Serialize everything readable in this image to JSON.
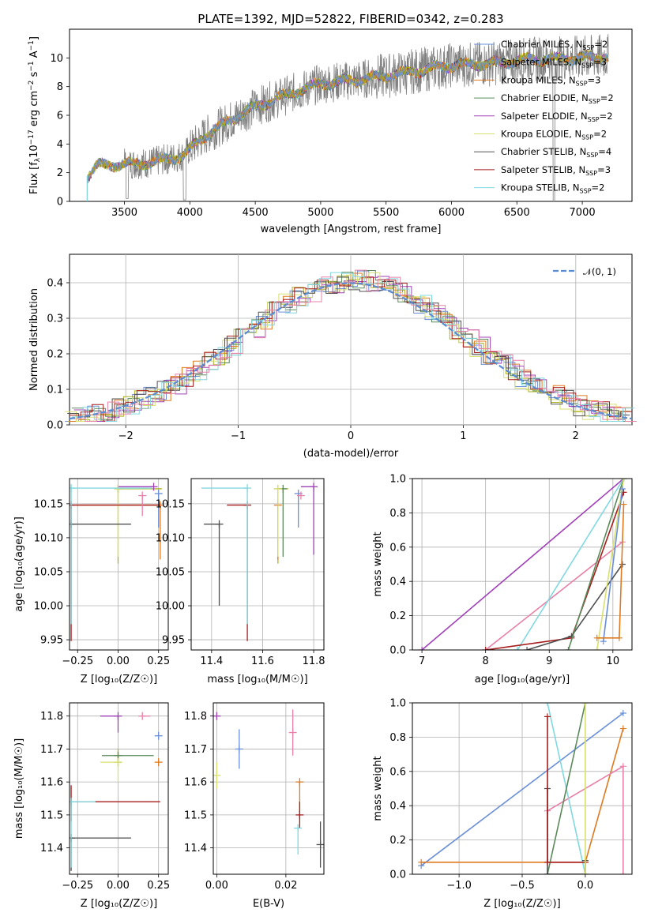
{
  "title": "PLATE=1392, MJD=52822, FIBERID=0342, z=0.283",
  "colors": {
    "chabrier_miles": "#6a8fd8",
    "salpeter_miles": "#aab020",
    "kroupa_miles": "#e07a20",
    "chabrier_elodie": "#5a8a5a",
    "salpeter_elodie": "#a040b8",
    "kroupa_elodie": "#d8e070",
    "chabrier_stelib": "#505050",
    "salpeter_stelib": "#a81c1c",
    "kroupa_stelib": "#80d8e0",
    "data": "#808080",
    "normal": "#5b8bd0",
    "pink": "#e880a8"
  },
  "chart_data": [
    {
      "id": "spectrum",
      "type": "line",
      "xlabel": "wavelength [Angstrom, rest frame]",
      "ylabel": "Flux [f_λ 10^-17 erg cm^-2 s^-1 A^-1]",
      "xlim": [
        3080,
        7380
      ],
      "ylim": [
        0,
        12
      ],
      "xticks": [
        "3500",
        "4000",
        "4500",
        "5000",
        "5500",
        "6000",
        "6500",
        "7000"
      ],
      "yticks": [
        "0",
        "2",
        "4",
        "6",
        "8",
        "10"
      ],
      "legend": [
        {
          "label": "Chabrier MILES, N",
          "sub": "SSP",
          "tail": "=2",
          "color": "chabrier_miles"
        },
        {
          "label": "Salpeter MILES, N",
          "sub": "SSP",
          "tail": "=3",
          "color": "salpeter_miles"
        },
        {
          "label": "Kroupa MILES, N",
          "sub": "SSP",
          "tail": "=3",
          "color": "kroupa_miles"
        },
        {
          "label": "Chabrier ELODIE, N",
          "sub": "SSP",
          "tail": "=2",
          "color": "chabrier_elodie"
        },
        {
          "label": "Salpeter ELODIE, N",
          "sub": "SSP",
          "tail": "=2",
          "color": "salpeter_elodie"
        },
        {
          "label": "Kroupa ELODIE, N",
          "sub": "SSP",
          "tail": "=2",
          "color": "kroupa_elodie"
        },
        {
          "label": "Chabrier STELIB, N",
          "sub": "SSP",
          "tail": "=4",
          "color": "chabrier_stelib"
        },
        {
          "label": "Salpeter STELIB, N",
          "sub": "SSP",
          "tail": "=3",
          "color": "salpeter_stelib"
        },
        {
          "label": "Kroupa STELIB, N",
          "sub": "SSP",
          "tail": "=2",
          "color": "kroupa_stelib"
        }
      ],
      "continuum": [
        [
          3215,
          1.7
        ],
        [
          3300,
          2.5
        ],
        [
          3500,
          2.6
        ],
        [
          3700,
          2.7
        ],
        [
          3950,
          3.2
        ],
        [
          4100,
          4.5
        ],
        [
          4300,
          5.6
        ],
        [
          4500,
          6.6
        ],
        [
          4800,
          7.6
        ],
        [
          5000,
          8.2
        ],
        [
          5300,
          8.5
        ],
        [
          5600,
          8.9
        ],
        [
          5800,
          9.2
        ],
        [
          6000,
          9.5
        ],
        [
          6300,
          9.6
        ],
        [
          6600,
          9.9
        ],
        [
          7000,
          10.0
        ],
        [
          7200,
          10.1
        ]
      ]
    },
    {
      "id": "residuals",
      "type": "step",
      "xlabel": "(data-model)/error",
      "ylabel": "Normed distribution",
      "xlim": [
        -2.5,
        2.5
      ],
      "ylim": [
        0,
        0.48
      ],
      "xticks": [
        -2,
        -1,
        0,
        1,
        2
      ],
      "xtick_labels": [
        "−2",
        "−1",
        "0",
        "1",
        "2"
      ],
      "yticks": [
        0.0,
        0.1,
        0.2,
        0.3,
        0.4
      ],
      "ytick_labels": [
        "0.0",
        "0.1",
        "0.2",
        "0.3",
        "0.4"
      ],
      "legend": "𝒩(0, 1)",
      "hist_bin_width": 0.1
    },
    {
      "id": "age_vs_Z",
      "type": "scatter",
      "xlabel": "Z [log₁₀(Z/Z☉)]",
      "ylabel": "age [log₁₀(age/yr)]",
      "xlim": [
        -0.3,
        0.31
      ],
      "ylim": [
        9.935,
        10.187
      ],
      "xticks": [
        -0.25,
        0.0,
        0.25
      ],
      "xtick_labels": [
        "−0.25",
        "0.00",
        "0.25"
      ],
      "yticks": [
        9.95,
        10.0,
        10.05,
        10.1,
        10.15
      ],
      "ytick_labels": [
        "9.95",
        "10.00",
        "10.05",
        "10.10",
        "10.15"
      ],
      "points": [
        {
          "x": 0.25,
          "y": 10.165,
          "ex": [
            0.0,
            0.0
          ],
          "ey": [
            0.05,
            0.0
          ],
          "c": "chabrier_miles"
        },
        {
          "x": 0.0,
          "y": 10.172,
          "ex": [
            0.0,
            0.27
          ],
          "ey": [
            0.11,
            0.0
          ],
          "c": "salpeter_miles"
        },
        {
          "x": 0.26,
          "y": 10.148,
          "ex": [
            0.52,
            0.0
          ],
          "ey": [
            0.08,
            0.0
          ],
          "c": "kroupa_miles"
        },
        {
          "x": 0.0,
          "y": 10.172,
          "ex": [
            0.0,
            0.2
          ],
          "ey": [
            0.0,
            0.0
          ],
          "c": "chabrier_elodie"
        },
        {
          "x": 0.22,
          "y": 10.175,
          "ex": [
            0.22,
            0.0
          ],
          "ey": [
            0.0,
            0.0
          ],
          "c": "salpeter_elodie"
        },
        {
          "x": 0.0,
          "y": 10.172,
          "ex": [
            0.0,
            0.2
          ],
          "ey": [
            0.1,
            0.0
          ],
          "c": "kroupa_elodie"
        },
        {
          "x": -0.29,
          "y": 10.12,
          "ex": [
            0.0,
            0.37
          ],
          "ey": [
            0.0,
            0.0
          ],
          "c": "chabrier_stelib"
        },
        {
          "x": -0.29,
          "y": 10.148,
          "ex": [
            0.0,
            0.55
          ],
          "ey": [
            0.2,
            0.0
          ],
          "c": "salpeter_stelib"
        },
        {
          "x": -0.29,
          "y": 10.173,
          "ex": [
            0.0,
            0.5
          ],
          "ey": [
            0.2,
            0.0
          ],
          "c": "kroupa_stelib"
        },
        {
          "x": 0.15,
          "y": 10.162,
          "ex": [
            0.0,
            0.0
          ],
          "ey": [
            0.03,
            0.0
          ],
          "c": "pink"
        }
      ]
    },
    {
      "id": "age_vs_mass",
      "type": "scatter",
      "xlabel": "mass [log₁₀(M/M☉)]",
      "xlim": [
        11.32,
        11.84
      ],
      "ylim": [
        9.935,
        10.187
      ],
      "xticks": [
        11.4,
        11.6,
        11.8
      ],
      "xtick_labels": [
        "11.4",
        "11.6",
        "11.8"
      ],
      "yticks": [
        9.95,
        10.0,
        10.05,
        10.1,
        10.15
      ],
      "ytick_labels": [
        "9.95",
        "10.00",
        "10.05",
        "10.10",
        "10.15"
      ],
      "points": [
        {
          "x": 11.74,
          "y": 10.165,
          "ex": [
            0.0,
            0.0
          ],
          "ey": [
            0.05,
            0.0
          ],
          "c": "chabrier_miles"
        },
        {
          "x": 11.66,
          "y": 10.172,
          "ex": [
            0.0,
            0.04
          ],
          "ey": [
            0.11,
            0.0
          ],
          "c": "salpeter_miles"
        },
        {
          "x": 11.66,
          "y": 10.148,
          "ex": [
            0.0,
            0.0
          ],
          "ey": [
            0.08,
            0.0
          ],
          "c": "kroupa_miles"
        },
        {
          "x": 11.68,
          "y": 10.172,
          "ex": [
            0.0,
            0.0
          ],
          "ey": [
            0.1,
            0.0
          ],
          "c": "chabrier_elodie"
        },
        {
          "x": 11.8,
          "y": 10.175,
          "ex": [
            0.05,
            0.0
          ],
          "ey": [
            0.1,
            0.0
          ],
          "c": "salpeter_elodie"
        },
        {
          "x": 11.66,
          "y": 10.172,
          "ex": [
            0.0,
            0.0
          ],
          "ey": [
            0.1,
            0.0
          ],
          "c": "kroupa_elodie"
        },
        {
          "x": 11.43,
          "y": 10.12,
          "ex": [
            0.06,
            0.0
          ],
          "ey": [
            0.12,
            0.0
          ],
          "c": "chabrier_stelib"
        },
        {
          "x": 11.54,
          "y": 10.148,
          "ex": [
            0.08,
            0.0
          ],
          "ey": [
            0.2,
            0.0
          ],
          "c": "salpeter_stelib"
        },
        {
          "x": 11.54,
          "y": 10.173,
          "ex": [
            0.18,
            0.0
          ],
          "ey": [
            0.2,
            0.0
          ],
          "c": "kroupa_stelib"
        },
        {
          "x": 11.75,
          "y": 10.162,
          "ex": [
            0.0,
            0.0
          ],
          "ey": [
            0.0,
            0.0
          ],
          "c": "pink"
        }
      ]
    },
    {
      "id": "weight_vs_age",
      "type": "line",
      "xlabel": "age [log₁₀(age/yr)]",
      "ylabel": "mass weight",
      "xlim": [
        6.85,
        10.3
      ],
      "ylim": [
        0,
        1
      ],
      "xticks": [
        7,
        8,
        9,
        10
      ],
      "xtick_labels": [
        "7",
        "8",
        "9",
        "10"
      ],
      "yticks": [
        0.0,
        0.2,
        0.4,
        0.6,
        0.8,
        1.0
      ],
      "ytick_labels": [
        "0.0",
        "0.2",
        "0.4",
        "0.6",
        "0.8",
        "1.0"
      ],
      "series": [
        {
          "c": "salpeter_elodie",
          "x": [
            7.0,
            10.17
          ],
          "y": [
            0.0,
            1.0
          ]
        },
        {
          "c": "pink",
          "x": [
            8.0,
            10.15
          ],
          "y": [
            0.0,
            0.63
          ]
        },
        {
          "c": "kroupa_stelib",
          "x": [
            8.5,
            10.17
          ],
          "y": [
            0.0,
            1.0
          ]
        },
        {
          "c": "salpeter_stelib",
          "x": [
            8.0,
            9.35,
            10.17
          ],
          "y": [
            0.0,
            0.07,
            0.92
          ]
        },
        {
          "c": "chabrier_stelib",
          "x": [
            8.65,
            9.35,
            10.15
          ],
          "y": [
            0.0,
            0.08,
            0.5
          ]
        },
        {
          "c": "chabrier_elodie",
          "x": [
            9.3,
            10.17
          ],
          "y": [
            0.0,
            1.0
          ]
        },
        {
          "c": "kroupa_elodie",
          "x": [
            9.75,
            10.17
          ],
          "y": [
            0.0,
            1.0
          ]
        },
        {
          "c": "chabrier_miles",
          "x": [
            9.85,
            10.15
          ],
          "y": [
            0.05,
            0.94
          ]
        },
        {
          "c": "kroupa_miles",
          "x": [
            9.75,
            10.1,
            10.17
          ],
          "y": [
            0.07,
            0.07,
            0.85
          ]
        }
      ]
    },
    {
      "id": "mass_vs_Z",
      "type": "scatter",
      "xlabel": "Z [log₁₀(Z/Z☉)]",
      "ylabel": "mass [log₁₀(M/M☉)]",
      "xlim": [
        -0.3,
        0.31
      ],
      "ylim": [
        11.32,
        11.84
      ],
      "xticks": [
        -0.25,
        0.0,
        0.25
      ],
      "xtick_labels": [
        "−0.25",
        "0.00",
        "0.25"
      ],
      "yticks": [
        11.4,
        11.5,
        11.6,
        11.7,
        11.8
      ],
      "ytick_labels": [
        "11.4",
        "11.5",
        "11.6",
        "11.7",
        "11.8"
      ],
      "points": [
        {
          "x": 0.25,
          "y": 11.74,
          "ex": [
            0.0,
            0.0
          ],
          "ey": [
            0.0,
            0.0
          ],
          "c": "chabrier_miles"
        },
        {
          "x": 0.0,
          "y": 11.66,
          "ex": [
            0.0,
            0.0
          ],
          "ey": [
            0.0,
            0.04
          ],
          "c": "salpeter_miles"
        },
        {
          "x": 0.25,
          "y": 11.66,
          "ex": [
            0.0,
            0.0
          ],
          "ey": [
            0.0,
            0.0
          ],
          "c": "kroupa_miles"
        },
        {
          "x": 0.0,
          "y": 11.68,
          "ex": [
            0.1,
            0.22
          ],
          "ey": [
            0.0,
            0.0
          ],
          "c": "chabrier_elodie"
        },
        {
          "x": 0.0,
          "y": 11.8,
          "ex": [
            0.11,
            0.0
          ],
          "ey": [
            0.05,
            0.0
          ],
          "c": "salpeter_elodie"
        },
        {
          "x": 0.0,
          "y": 11.66,
          "ex": [
            0.11,
            0.0
          ],
          "ey": [
            0.06,
            0.0
          ],
          "c": "kroupa_elodie"
        },
        {
          "x": -0.29,
          "y": 11.43,
          "ex": [
            0.0,
            0.37
          ],
          "ey": [
            0.1,
            0.0
          ],
          "c": "chabrier_stelib"
        },
        {
          "x": -0.29,
          "y": 11.54,
          "ex": [
            0.0,
            0.55
          ],
          "ey": [
            0.06,
            0.05
          ],
          "c": "salpeter_stelib"
        },
        {
          "x": -0.29,
          "y": 11.54,
          "ex": [
            0.0,
            0.15
          ],
          "ey": [
            0.2,
            0.0
          ],
          "c": "kroupa_stelib"
        },
        {
          "x": 0.15,
          "y": 11.8,
          "ex": [
            0.0,
            0.05
          ],
          "ey": [
            0.0,
            0.0
          ],
          "c": "pink"
        }
      ]
    },
    {
      "id": "mass_vs_ebv",
      "type": "scatter",
      "xlabel": "E(B-V)",
      "xlim": [
        -0.001,
        0.031
      ],
      "ylim": [
        11.32,
        11.84
      ],
      "xticks": [
        0.0,
        0.02
      ],
      "xtick_labels": [
        "0.00",
        "0.02"
      ],
      "yticks": [
        11.4,
        11.5,
        11.6,
        11.7,
        11.8
      ],
      "ytick_labels": [
        "11.4",
        "11.5",
        "11.6",
        "11.7",
        "11.8"
      ],
      "points": [
        {
          "x": 0.0065,
          "y": 11.7,
          "ex": [
            0.0,
            0.0
          ],
          "ey": [
            0.06,
            0.06
          ],
          "c": "chabrier_miles"
        },
        {
          "x": 0.0,
          "y": 11.8,
          "ex": [
            0.0,
            0.0
          ],
          "ey": [
            0.0,
            0.0
          ],
          "c": "salpeter_elodie"
        },
        {
          "x": 0.0,
          "y": 11.62,
          "ex": [
            0.0,
            0.0
          ],
          "ey": [
            0.04,
            0.04
          ],
          "c": "kroupa_elodie"
        },
        {
          "x": 0.024,
          "y": 11.6,
          "ex": [
            0.0,
            0.0
          ],
          "ey": [
            0.09,
            0.0
          ],
          "c": "kroupa_miles"
        },
        {
          "x": 0.024,
          "y": 11.5,
          "ex": [
            0.0,
            0.0
          ],
          "ey": [
            0.04,
            0.04
          ],
          "c": "salpeter_stelib"
        },
        {
          "x": 0.022,
          "y": 11.75,
          "ex": [
            0.0,
            0.0
          ],
          "ey": [
            0.07,
            0.07
          ],
          "c": "pink"
        },
        {
          "x": 0.0235,
          "y": 11.46,
          "ex": [
            0.0,
            0.0
          ],
          "ey": [
            0.08,
            0.0
          ],
          "c": "kroupa_stelib"
        },
        {
          "x": 0.03,
          "y": 11.41,
          "ex": [
            0.0,
            0.0
          ],
          "ey": [
            0.07,
            0.07
          ],
          "c": "chabrier_stelib"
        }
      ]
    },
    {
      "id": "weight_vs_Z",
      "type": "line",
      "xlabel": "Z [log₁₀(Z/Z☉)]",
      "ylabel": "mass weight",
      "xlim": [
        -1.37,
        0.37
      ],
      "ylim": [
        0,
        1
      ],
      "xticks": [
        -1.0,
        -0.5,
        0.0
      ],
      "xtick_labels": [
        "−1.0",
        "−0.5",
        "0.0"
      ],
      "yticks": [
        0.0,
        0.2,
        0.4,
        0.6,
        0.8,
        1.0
      ],
      "ytick_labels": [
        "0.0",
        "0.2",
        "0.4",
        "0.6",
        "0.8",
        "1.0"
      ],
      "series": [
        {
          "c": "chabrier_miles",
          "x": [
            -1.3,
            0.3
          ],
          "y": [
            0.05,
            0.94
          ]
        },
        {
          "c": "kroupa_miles",
          "x": [
            -1.3,
            0.0,
            0.3
          ],
          "y": [
            0.07,
            0.07,
            0.85
          ]
        },
        {
          "c": "pink",
          "x": [
            -0.3,
            0.3,
            0.3
          ],
          "y": [
            0.37,
            0.63,
            0.0
          ]
        },
        {
          "c": "kroupa_stelib",
          "x": [
            -0.3,
            0.0
          ],
          "y": [
            1.0,
            0.0
          ]
        },
        {
          "c": "chabrier_elodie",
          "x": [
            -0.3,
            0.0
          ],
          "y": [
            0.0,
            1.0
          ]
        },
        {
          "c": "chabrier_stelib",
          "x": [
            -0.3,
            -0.3,
            0.0,
            0.0
          ],
          "y": [
            0.5,
            0.0,
            0.0,
            0.08
          ]
        },
        {
          "c": "salpeter_stelib",
          "x": [
            -0.3,
            -0.3,
            0.0
          ],
          "y": [
            0.92,
            0.07,
            0.07
          ]
        },
        {
          "c": "kroupa_elodie",
          "x": [
            0.0,
            0.0
          ],
          "y": [
            0.0,
            1.0
          ]
        }
      ]
    }
  ]
}
